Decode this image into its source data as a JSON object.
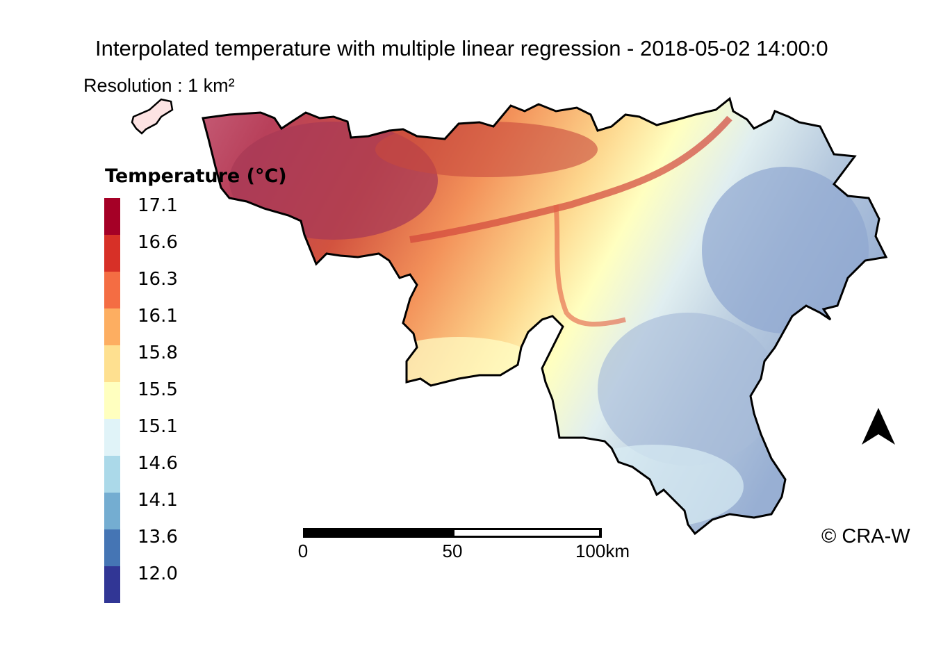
{
  "title": "Interpolated temperature with multiple linear regression - 2018-05-02 14:00:0",
  "subtitle": "Resolution : 1 km²",
  "legend": {
    "title": "Temperature (°C)",
    "entries": [
      {
        "label": "17.1",
        "color": "#a50026"
      },
      {
        "label": "16.6",
        "color": "#d73027"
      },
      {
        "label": "16.3",
        "color": "#f46d43"
      },
      {
        "label": "16.1",
        "color": "#fdae61"
      },
      {
        "label": "15.8",
        "color": "#fee090"
      },
      {
        "label": "15.5",
        "color": "#ffffbf"
      },
      {
        "label": "15.1",
        "color": "#e0f3f8"
      },
      {
        "label": "14.6",
        "color": "#abd9e9"
      },
      {
        "label": "14.1",
        "color": "#74add1"
      },
      {
        "label": "13.6",
        "color": "#4575b4"
      },
      {
        "label": "12.0",
        "color": "#313695"
      }
    ]
  },
  "scale_bar": {
    "labels": [
      "0",
      "50",
      "100km"
    ]
  },
  "north_arrow_icon": "north-arrow-icon",
  "copyright": "© CRA-W",
  "colors": {
    "warm_north": "#b8405a",
    "mid": "#fdb96b",
    "neutral": "#ffffc0",
    "cool_south": "#9fb6d6",
    "border": "#000000"
  }
}
